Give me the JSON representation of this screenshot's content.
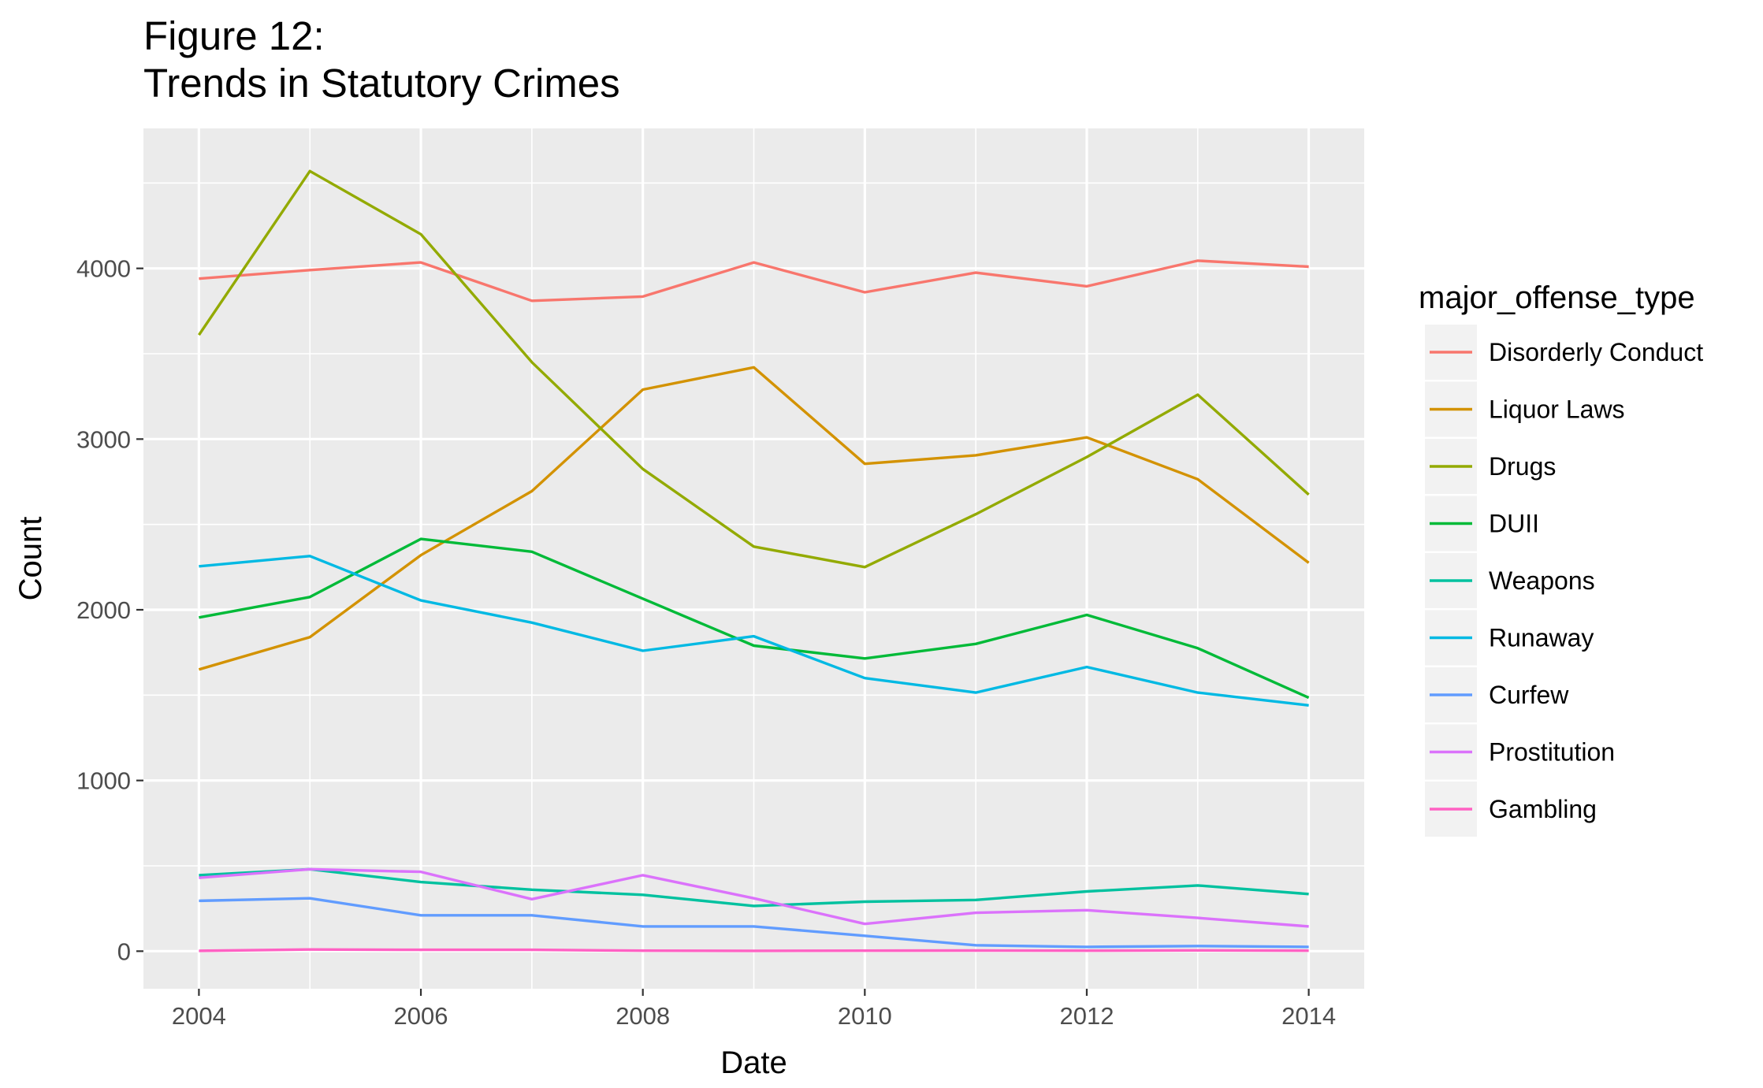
{
  "chart_data": {
    "type": "line",
    "title": "Figure 12:",
    "subtitle": "Trends in Statutory Crimes",
    "xlabel": "Date",
    "ylabel": "Count",
    "xlim": [
      2003.5,
      2014.5
    ],
    "ylim": [
      -220,
      4820
    ],
    "x_ticks": [
      2004,
      2006,
      2008,
      2010,
      2012,
      2014
    ],
    "y_ticks": [
      0,
      1000,
      2000,
      3000,
      4000
    ],
    "grid": true,
    "legend": {
      "title": "major_offense_type",
      "position": "right"
    },
    "x": [
      2004,
      2005,
      2006,
      2007,
      2008,
      2009,
      2010,
      2011,
      2012,
      2013,
      2014
    ],
    "series": [
      {
        "name": "Disorderly Conduct",
        "color": "#F8766D",
        "values": [
          3940,
          3990,
          4035,
          3810,
          3835,
          4035,
          3860,
          3975,
          3895,
          4045,
          4010
        ]
      },
      {
        "name": "Liquor Laws",
        "color": "#D39200",
        "values": [
          1650,
          1840,
          2320,
          2695,
          3290,
          3420,
          2855,
          2905,
          3010,
          2765,
          2275
        ]
      },
      {
        "name": "Drugs",
        "color": "#93AA00",
        "values": [
          3610,
          4570,
          4200,
          3450,
          2825,
          2370,
          2250,
          2560,
          2895,
          3260,
          2675
        ]
      },
      {
        "name": "DUII",
        "color": "#00BA38",
        "values": [
          1955,
          2075,
          2415,
          2340,
          2065,
          1790,
          1715,
          1800,
          1970,
          1775,
          1485
        ]
      },
      {
        "name": "Weapons",
        "color": "#00C19F",
        "values": [
          445,
          480,
          405,
          360,
          330,
          265,
          290,
          300,
          350,
          385,
          335
        ]
      },
      {
        "name": "Runaway",
        "color": "#00B9E3",
        "values": [
          2255,
          2315,
          2055,
          1925,
          1760,
          1845,
          1600,
          1515,
          1665,
          1515,
          1440
        ]
      },
      {
        "name": "Curfew",
        "color": "#619CFF",
        "values": [
          295,
          310,
          210,
          210,
          145,
          145,
          90,
          35,
          25,
          30,
          25
        ]
      },
      {
        "name": "Prostitution",
        "color": "#DB72FB",
        "values": [
          430,
          480,
          465,
          305,
          445,
          310,
          160,
          225,
          240,
          195,
          145
        ]
      },
      {
        "name": "Gambling",
        "color": "#FF61C3",
        "values": [
          2,
          10,
          8,
          8,
          3,
          2,
          3,
          4,
          3,
          5,
          3
        ]
      }
    ]
  }
}
